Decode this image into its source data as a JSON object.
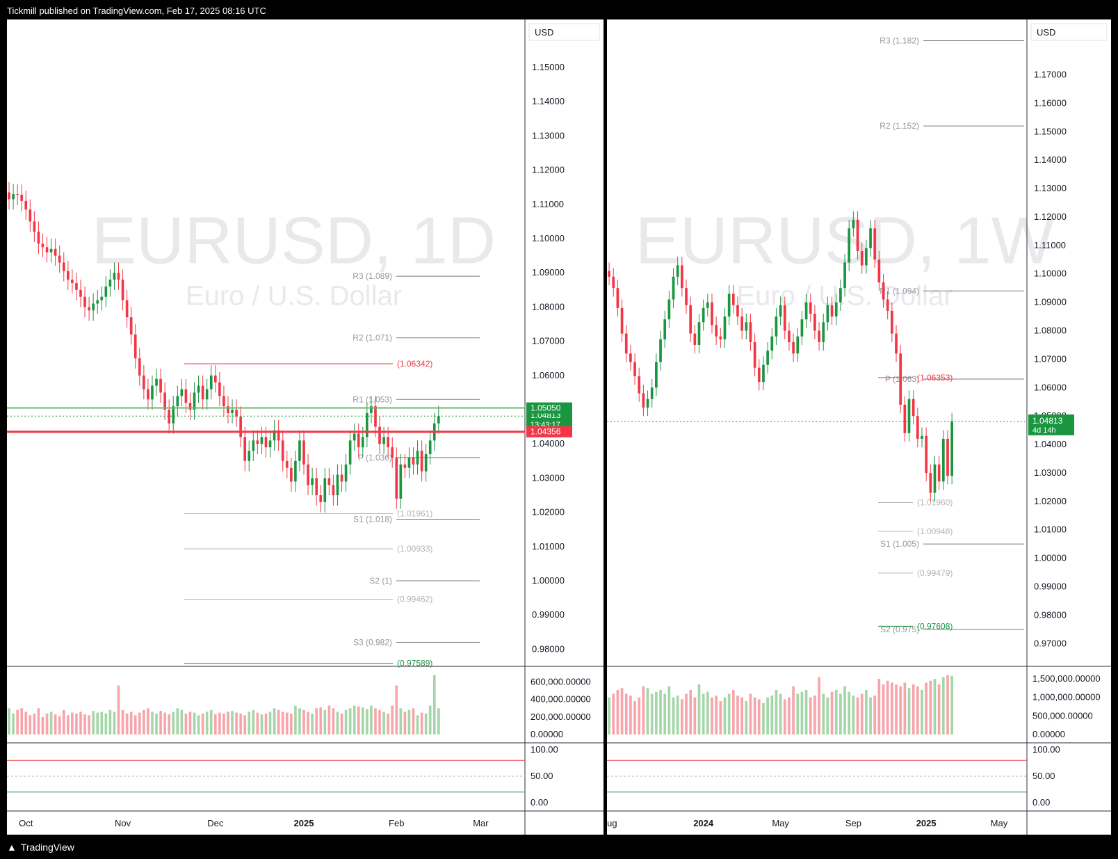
{
  "header": {
    "attribution": "Tickmill published on TradingView.com, Feb 17, 2025 08:16 UTC"
  },
  "footer": {
    "brand": "TradingView",
    "logo_icon": "tradingview-logo-icon"
  },
  "colors": {
    "up": "#1a9641",
    "down": "#f23645",
    "up_volume": "#a5d6a7",
    "down_volume": "#f7a5ab",
    "ma": "#ff9800",
    "price_tag": "#1a9641",
    "stop_tag": "#f23645",
    "pivot_line": "#787b86"
  },
  "chart_data": [
    {
      "type": "candlestick",
      "symbol": "EURUSD",
      "interval": "1D",
      "watermark": "EURUSD, 1D",
      "watermark_sub": "Euro / U.S. Dollar",
      "currency": "USD",
      "ylim": [
        0.975,
        1.162
      ],
      "price_ticks": [
        "1.15000",
        "1.14000",
        "1.13000",
        "1.12000",
        "1.11000",
        "1.10000",
        "1.09000",
        "1.08000",
        "1.07000",
        "1.06000",
        "1.05000",
        "1.04000",
        "1.03000",
        "1.02000",
        "1.01000",
        "1.00000",
        "0.99000",
        "0.98000"
      ],
      "x_ticks": [
        {
          "label": "Oct",
          "bold": false,
          "index": 4
        },
        {
          "label": "Nov",
          "bold": false,
          "index": 27
        },
        {
          "label": "Dec",
          "bold": false,
          "index": 49
        },
        {
          "label": "2025",
          "bold": true,
          "index": 70
        },
        {
          "label": "Feb",
          "bold": false,
          "index": 92
        },
        {
          "label": "Mar",
          "bold": false,
          "index": 112
        }
      ],
      "x_count": 123,
      "last_price": "1.04813",
      "countdown": "13:43:17",
      "target_tag": "1.05050",
      "stop_tag": "1.04356",
      "target_price": 1.0505,
      "stop_price": 1.04356,
      "pivots": [
        {
          "label": "R3 (1.089)",
          "value": 1.089
        },
        {
          "label": "R2 (1.071)",
          "value": 1.071
        },
        {
          "label": "R1 (1.053)",
          "value": 1.053
        },
        {
          "label": "P (1.036)",
          "value": 1.036
        },
        {
          "label": "S1 (1.018)",
          "value": 1.018
        },
        {
          "label": "S2 (1)",
          "value": 1.0
        },
        {
          "label": "S3 (0.982)",
          "value": 0.982
        }
      ],
      "fib_labels": [
        {
          "label": "(1.06342)",
          "value": 1.06342,
          "color": "#f23645"
        },
        {
          "label": "(1.01961)",
          "value": 1.01961,
          "color": "#b2b5be"
        },
        {
          "label": "(1.00933)",
          "value": 1.00933,
          "color": "#b2b5be"
        },
        {
          "label": "(0.99462)",
          "value": 0.99462,
          "color": "#b2b5be"
        },
        {
          "label": "(0.97589)",
          "value": 0.97589,
          "color": "#1a9641"
        }
      ],
      "closes": [
        1.1115,
        1.113,
        1.1128,
        1.111,
        1.1085,
        1.105,
        1.102,
        1.0985,
        1.0975,
        1.096,
        1.097,
        1.095,
        1.093,
        1.0905,
        1.088,
        1.087,
        1.085,
        1.083,
        1.08,
        1.079,
        1.081,
        1.082,
        1.083,
        1.086,
        1.088,
        1.09,
        1.088,
        1.082,
        1.077,
        1.072,
        1.065,
        1.06,
        1.056,
        1.053,
        1.057,
        1.059,
        1.055,
        1.05,
        1.046,
        1.051,
        1.054,
        1.056,
        1.052,
        1.05,
        1.055,
        1.057,
        1.053,
        1.056,
        1.06,
        1.058,
        1.054,
        1.051,
        1.049,
        1.05,
        1.048,
        1.042,
        1.035,
        1.038,
        1.041,
        1.04,
        1.042,
        1.039,
        1.041,
        1.044,
        1.041,
        1.035,
        1.033,
        1.029,
        1.035,
        1.041,
        1.034,
        1.028,
        1.03,
        1.025,
        1.023,
        1.03,
        1.028,
        1.025,
        1.031,
        1.029,
        1.034,
        1.041,
        1.043,
        1.039,
        1.042,
        1.049,
        1.051,
        1.045,
        1.04,
        1.042,
        1.039,
        1.036,
        1.024,
        1.034,
        1.033,
        1.036,
        1.034,
        1.038,
        1.032,
        1.037,
        1.041,
        1.046,
        1.0481
      ],
      "volumes": [
        300000,
        240000,
        280000,
        300000,
        260000,
        220000,
        240000,
        300000,
        200000,
        240000,
        260000,
        230000,
        210000,
        280000,
        220000,
        250000,
        240000,
        260000,
        230000,
        220000,
        270000,
        250000,
        260000,
        240000,
        280000,
        260000,
        560000,
        280000,
        240000,
        260000,
        220000,
        250000,
        280000,
        300000,
        260000,
        240000,
        270000,
        250000,
        230000,
        260000,
        300000,
        280000,
        240000,
        260000,
        250000,
        220000,
        240000,
        260000,
        280000,
        230000,
        250000,
        240000,
        260000,
        270000,
        250000,
        240000,
        220000,
        260000,
        280000,
        250000,
        230000,
        240000,
        260000,
        300000,
        280000,
        260000,
        250000,
        240000,
        330000,
        300000,
        280000,
        260000,
        240000,
        300000,
        310000,
        280000,
        330000,
        300000,
        260000,
        240000,
        280000,
        300000,
        330000,
        320000,
        310000,
        290000,
        330000,
        300000,
        280000,
        260000,
        240000,
        330000,
        560000,
        300000,
        260000,
        280000,
        300000,
        220000,
        250000,
        240000,
        330000,
        680000,
        300000
      ],
      "volume_ticks": [
        "600,000.00000",
        "400,000.00000",
        "200,000.00000",
        "0.00000"
      ],
      "volume_max": 700000,
      "osc_ticks": [
        "100.00",
        "50.00",
        "0.00"
      ]
    },
    {
      "type": "candlestick",
      "symbol": "EURUSD",
      "interval": "1W",
      "watermark": "EURUSD, 1W",
      "watermark_sub": "Euro / U.S. Dollar",
      "currency": "USD",
      "ylim": [
        0.962,
        1.187
      ],
      "price_ticks": [
        "1.17000",
        "1.16000",
        "1.15000",
        "1.14000",
        "1.13000",
        "1.12000",
        "1.11000",
        "1.10000",
        "1.09000",
        "1.08000",
        "1.07000",
        "1.06000",
        "1.05000",
        "1.04000",
        "1.03000",
        "1.02000",
        "1.01000",
        "1.00000",
        "0.99000",
        "0.98000",
        "0.97000"
      ],
      "x_ticks": [
        {
          "label": "Aug",
          "bold": false,
          "index": 0
        },
        {
          "label": "2024",
          "bold": true,
          "index": 22
        },
        {
          "label": "May",
          "bold": false,
          "index": 40
        },
        {
          "label": "Sep",
          "bold": false,
          "index": 57
        },
        {
          "label": "2025",
          "bold": true,
          "index": 74
        },
        {
          "label": "May",
          "bold": false,
          "index": 91
        }
      ],
      "x_count": 98,
      "last_price": "1.04813",
      "countdown": "4d 14h",
      "pivots": [
        {
          "label": "R3 (1.182)",
          "value": 1.182
        },
        {
          "label": "R2 (1.152)",
          "value": 1.152
        },
        {
          "label": "R1 (1.094)",
          "value": 1.094
        },
        {
          "label": "P (1.063)",
          "value": 1.063
        },
        {
          "label": "S1 (1.005)",
          "value": 1.005
        },
        {
          "label": "S2 (0.975)",
          "value": 0.975
        }
      ],
      "fib_labels": [
        {
          "label": "(1.06353)",
          "value": 1.06353,
          "color": "#f23645"
        },
        {
          "label": "(1.01960)",
          "value": 1.0196,
          "color": "#b2b5be"
        },
        {
          "label": "(1.00948)",
          "value": 1.00948,
          "color": "#b2b5be"
        },
        {
          "label": "(0.99479)",
          "value": 0.99479,
          "color": "#b2b5be"
        },
        {
          "label": "(0.97608)",
          "value": 0.97608,
          "color": "#1a9641"
        }
      ],
      "closes": [
        1.099,
        1.095,
        1.088,
        1.079,
        1.072,
        1.069,
        1.064,
        1.058,
        1.053,
        1.056,
        1.06,
        1.069,
        1.077,
        1.084,
        1.091,
        1.099,
        1.103,
        1.095,
        1.089,
        1.079,
        1.075,
        1.083,
        1.088,
        1.09,
        1.082,
        1.078,
        1.077,
        1.085,
        1.093,
        1.089,
        1.085,
        1.08,
        1.083,
        1.076,
        1.067,
        1.062,
        1.068,
        1.073,
        1.078,
        1.085,
        1.089,
        1.08,
        1.076,
        1.072,
        1.078,
        1.084,
        1.09,
        1.086,
        1.08,
        1.076,
        1.083,
        1.089,
        1.085,
        1.09,
        1.095,
        1.104,
        1.116,
        1.119,
        1.108,
        1.103,
        1.109,
        1.116,
        1.105,
        1.097,
        1.091,
        1.087,
        1.079,
        1.072,
        1.054,
        1.044,
        1.056,
        1.05,
        1.042,
        1.043,
        1.03,
        1.023,
        1.033,
        1.027,
        1.042,
        1.029,
        1.0481
      ],
      "volumes": [
        1000000,
        1100000,
        1200000,
        1250000,
        1100000,
        1050000,
        900000,
        1000000,
        1300000,
        1250000,
        1100000,
        1150000,
        1200000,
        1100000,
        1300000,
        1000000,
        1050000,
        950000,
        1100000,
        1200000,
        1000000,
        1350000,
        1100000,
        1150000,
        1000000,
        1050000,
        900000,
        1000000,
        1100000,
        1200000,
        1050000,
        1000000,
        900000,
        1100000,
        1000000,
        950000,
        850000,
        1000000,
        1050000,
        1200000,
        1100000,
        950000,
        1000000,
        1300000,
        1100000,
        1150000,
        1200000,
        1000000,
        1050000,
        1550000,
        1100000,
        1000000,
        1150000,
        1200000,
        1100000,
        1300000,
        1150000,
        1050000,
        1000000,
        1100000,
        1200000,
        1000000,
        1050000,
        1500000,
        1350000,
        1450000,
        1400000,
        1350000,
        1300000,
        1400000,
        1250000,
        1350000,
        1300000,
        1200000,
        1400000,
        1450000,
        1500000,
        1350000,
        1550000,
        1600000,
        1580000
      ],
      "volume_ticks": [
        "1,500,000.00000",
        "1,000,000.00000",
        "500,000.00000",
        "0.00000"
      ],
      "volume_max": 1650000,
      "osc_ticks": [
        "100.00",
        "50.00",
        "0.00"
      ]
    }
  ]
}
